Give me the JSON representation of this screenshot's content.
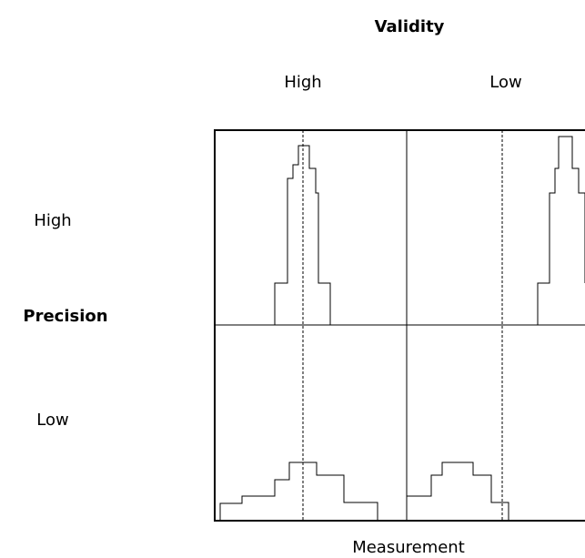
{
  "header": {
    "title": "Validity",
    "columns": [
      "High",
      "Low"
    ]
  },
  "rows": {
    "title": "Precision",
    "labels": [
      "High",
      "Low"
    ]
  },
  "footer": {
    "label": "Measurement"
  }
}
